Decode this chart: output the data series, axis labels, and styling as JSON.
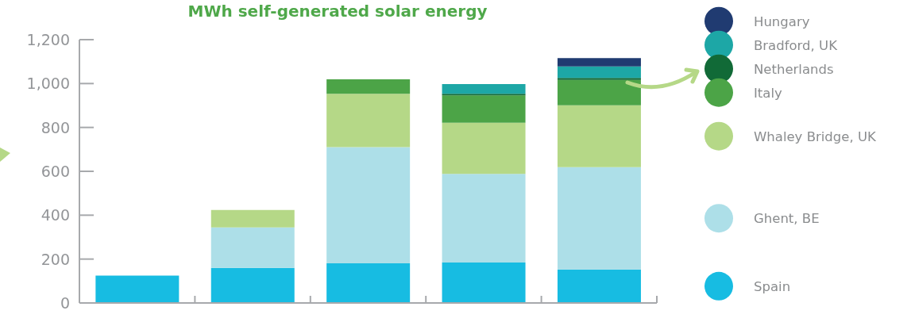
{
  "chart_data": {
    "type": "bar",
    "title": "MWh self-generated solar energy",
    "categories": [
      null,
      null,
      null,
      null,
      null
    ],
    "stacked": true,
    "series": [
      {
        "name": "Spain",
        "color": "#17bce2",
        "values": [
          125,
          160,
          181,
          184,
          153
        ]
      },
      {
        "name": "Ghent, BE",
        "color": "#addfe8",
        "values": [
          null,
          184,
          529,
          404,
          466
        ]
      },
      {
        "name": "Whaley Bridge, UK",
        "color": "#b5d887",
        "values": [
          null,
          80,
          243,
          233,
          282
        ]
      },
      {
        "name": "Italy",
        "color": "#4ca447",
        "values": [
          null,
          null,
          66,
          125,
          116
        ]
      },
      {
        "name": "Netherlands",
        "color": "#116a37",
        "values": [
          null,
          null,
          null,
          7,
          9
        ]
      },
      {
        "name": "Bradford, UK",
        "color": "#1da7a6",
        "values": [
          null,
          null,
          null,
          45,
          52
        ]
      },
      {
        "name": "Hungary",
        "color": "#203b71",
        "values": [
          null,
          null,
          null,
          null,
          38
        ]
      }
    ],
    "ylim": [
      0,
      1200
    ],
    "yticks": [
      0,
      200,
      400,
      600,
      800,
      {
        "value": 1000,
        "label": "1,000"
      },
      {
        "value": 1200,
        "label": "1,200"
      }
    ],
    "legend": "right"
  }
}
